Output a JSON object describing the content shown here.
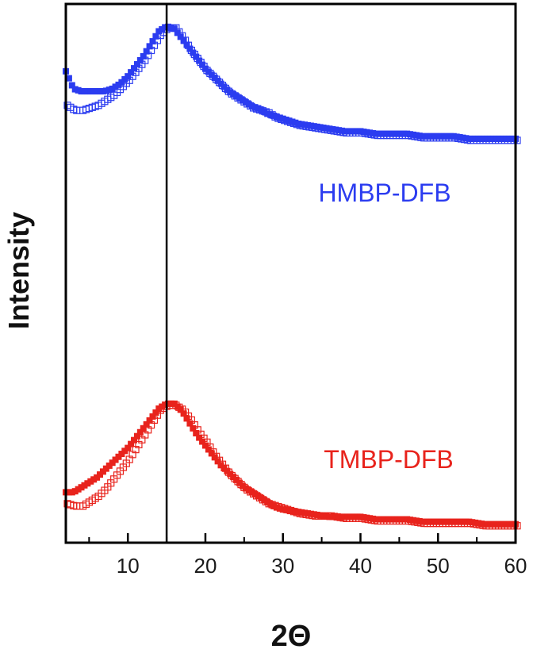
{
  "chart_data": {
    "type": "scatter",
    "xlabel": "2Θ",
    "ylabel": "Intensity",
    "xlim": [
      2,
      60
    ],
    "ylim": [
      0,
      1
    ],
    "x_ticks_major": [
      10,
      20,
      30,
      40,
      50,
      60
    ],
    "x_ticks_minor": [
      5,
      15,
      25,
      35,
      45,
      55
    ],
    "y_tick_labels": false,
    "grid": false,
    "reference_line_x": 15,
    "series": [
      {
        "name": "HMBP-DFB",
        "color": "#2b3cf0",
        "marker": "square",
        "filled_values": [
          [
            2,
            0.81
          ],
          [
            3,
            0.74
          ],
          [
            4,
            0.73
          ],
          [
            5,
            0.73
          ],
          [
            6,
            0.73
          ],
          [
            7,
            0.73
          ],
          [
            8,
            0.74
          ],
          [
            9,
            0.76
          ],
          [
            10,
            0.79
          ],
          [
            11,
            0.83
          ],
          [
            12,
            0.87
          ],
          [
            13,
            0.92
          ],
          [
            14,
            0.97
          ],
          [
            15,
            0.99
          ],
          [
            16,
            0.98
          ],
          [
            17,
            0.94
          ],
          [
            18,
            0.9
          ],
          [
            19,
            0.86
          ],
          [
            20,
            0.82
          ],
          [
            21,
            0.79
          ],
          [
            22,
            0.76
          ],
          [
            23,
            0.73
          ],
          [
            24,
            0.71
          ],
          [
            25,
            0.69
          ],
          [
            26,
            0.67
          ],
          [
            27,
            0.66
          ],
          [
            28,
            0.64
          ],
          [
            29,
            0.63
          ],
          [
            30,
            0.62
          ],
          [
            32,
            0.6
          ],
          [
            34,
            0.59
          ],
          [
            36,
            0.58
          ],
          [
            38,
            0.57
          ],
          [
            40,
            0.57
          ],
          [
            42,
            0.56
          ],
          [
            44,
            0.56
          ],
          [
            46,
            0.56
          ],
          [
            48,
            0.55
          ],
          [
            50,
            0.55
          ],
          [
            52,
            0.55
          ],
          [
            54,
            0.54
          ],
          [
            56,
            0.54
          ],
          [
            58,
            0.54
          ],
          [
            60,
            0.54
          ]
        ],
        "open_values": [
          [
            2,
            0.68
          ],
          [
            3,
            0.66
          ],
          [
            4,
            0.66
          ],
          [
            5,
            0.67
          ],
          [
            6,
            0.68
          ],
          [
            7,
            0.7
          ],
          [
            8,
            0.72
          ],
          [
            9,
            0.75
          ],
          [
            10,
            0.78
          ],
          [
            11,
            0.82
          ],
          [
            12,
            0.86
          ],
          [
            13,
            0.91
          ],
          [
            14,
            0.96
          ],
          [
            15,
            0.99
          ],
          [
            16,
            0.99
          ],
          [
            17,
            0.95
          ],
          [
            18,
            0.9
          ],
          [
            19,
            0.86
          ],
          [
            20,
            0.82
          ],
          [
            21,
            0.79
          ],
          [
            22,
            0.76
          ],
          [
            23,
            0.73
          ],
          [
            24,
            0.71
          ],
          [
            25,
            0.69
          ],
          [
            26,
            0.67
          ],
          [
            27,
            0.66
          ],
          [
            28,
            0.65
          ],
          [
            29,
            0.63
          ],
          [
            30,
            0.62
          ],
          [
            32,
            0.6
          ],
          [
            34,
            0.59
          ],
          [
            36,
            0.58
          ],
          [
            38,
            0.57
          ],
          [
            40,
            0.57
          ],
          [
            42,
            0.56
          ],
          [
            44,
            0.56
          ],
          [
            46,
            0.56
          ],
          [
            48,
            0.55
          ],
          [
            50,
            0.55
          ],
          [
            52,
            0.55
          ],
          [
            54,
            0.54
          ],
          [
            56,
            0.54
          ],
          [
            58,
            0.54
          ],
          [
            60,
            0.54
          ]
        ]
      },
      {
        "name": "TMBP-DFB",
        "color": "#e8231c",
        "marker": "square",
        "filled_values": [
          [
            2,
            0.16
          ],
          [
            3,
            0.16
          ],
          [
            4,
            0.18
          ],
          [
            5,
            0.2
          ],
          [
            6,
            0.22
          ],
          [
            7,
            0.25
          ],
          [
            8,
            0.28
          ],
          [
            9,
            0.31
          ],
          [
            10,
            0.34
          ],
          [
            11,
            0.38
          ],
          [
            12,
            0.42
          ],
          [
            13,
            0.46
          ],
          [
            14,
            0.5
          ],
          [
            15,
            0.52
          ],
          [
            16,
            0.52
          ],
          [
            17,
            0.49
          ],
          [
            18,
            0.44
          ],
          [
            19,
            0.39
          ],
          [
            20,
            0.35
          ],
          [
            21,
            0.31
          ],
          [
            22,
            0.27
          ],
          [
            23,
            0.24
          ],
          [
            24,
            0.21
          ],
          [
            25,
            0.18
          ],
          [
            26,
            0.16
          ],
          [
            27,
            0.14
          ],
          [
            28,
            0.12
          ],
          [
            29,
            0.1
          ],
          [
            30,
            0.09
          ],
          [
            32,
            0.08
          ],
          [
            34,
            0.07
          ],
          [
            36,
            0.06
          ],
          [
            38,
            0.06
          ],
          [
            40,
            0.06
          ],
          [
            42,
            0.05
          ],
          [
            44,
            0.05
          ],
          [
            46,
            0.05
          ],
          [
            48,
            0.04
          ],
          [
            50,
            0.04
          ],
          [
            52,
            0.04
          ],
          [
            54,
            0.04
          ],
          [
            56,
            0.03
          ],
          [
            58,
            0.03
          ],
          [
            60,
            0.03
          ]
        ],
        "open_values": [
          [
            2,
            0.12
          ],
          [
            3,
            0.11
          ],
          [
            4,
            0.11
          ],
          [
            5,
            0.13
          ],
          [
            6,
            0.15
          ],
          [
            7,
            0.18
          ],
          [
            8,
            0.22
          ],
          [
            9,
            0.26
          ],
          [
            10,
            0.3
          ],
          [
            11,
            0.35
          ],
          [
            12,
            0.4
          ],
          [
            13,
            0.45
          ],
          [
            14,
            0.5
          ],
          [
            15,
            0.52
          ],
          [
            16,
            0.52
          ],
          [
            17,
            0.5
          ],
          [
            18,
            0.46
          ],
          [
            19,
            0.41
          ],
          [
            20,
            0.37
          ],
          [
            21,
            0.32
          ],
          [
            22,
            0.28
          ],
          [
            23,
            0.24
          ],
          [
            24,
            0.21
          ],
          [
            25,
            0.18
          ],
          [
            26,
            0.16
          ],
          [
            27,
            0.14
          ],
          [
            28,
            0.12
          ],
          [
            29,
            0.11
          ],
          [
            30,
            0.1
          ],
          [
            32,
            0.08
          ],
          [
            34,
            0.07
          ],
          [
            36,
            0.07
          ],
          [
            38,
            0.06
          ],
          [
            40,
            0.06
          ],
          [
            42,
            0.05
          ],
          [
            44,
            0.05
          ],
          [
            46,
            0.05
          ],
          [
            48,
            0.04
          ],
          [
            50,
            0.04
          ],
          [
            52,
            0.04
          ],
          [
            54,
            0.04
          ],
          [
            56,
            0.03
          ],
          [
            58,
            0.03
          ],
          [
            60,
            0.03
          ]
        ]
      }
    ]
  }
}
